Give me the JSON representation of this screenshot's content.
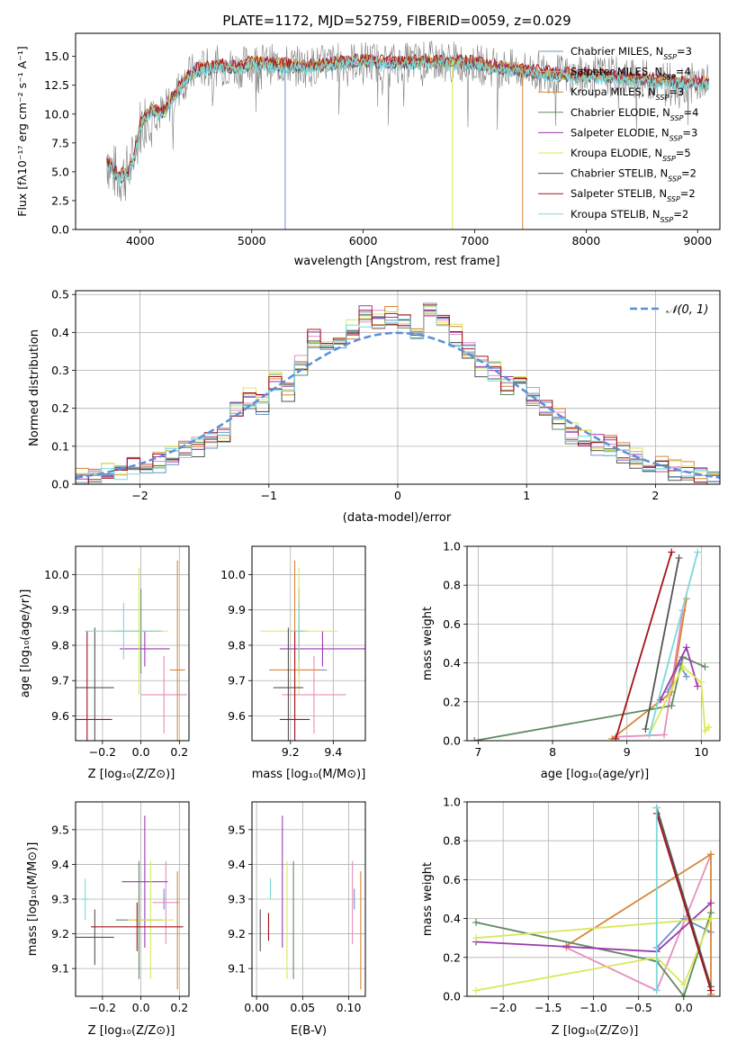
{
  "colors": {
    "series": [
      "#6f93c9",
      "#e58fbd",
      "#d4883a",
      "#5f8a5f",
      "#9b3ab0",
      "#d9e85a",
      "#555555",
      "#a3131a",
      "#7bd8dc"
    ],
    "gaussian": "#5b8fd9",
    "grid": "#b0b0b0"
  },
  "chart_data": [
    {
      "id": "spectrum",
      "type": "line",
      "title": "PLATE=1172, MJD=52759, FIBERID=0059, z=0.029",
      "xlabel": "wavelength [Angstrom, rest frame]",
      "ylabel": "Flux [fλ10⁻¹⁷ erg cm⁻² s⁻¹ A⁻¹]",
      "xlim": [
        3420,
        9200
      ],
      "ylim": [
        0,
        17
      ],
      "xticks": [
        4000,
        5000,
        6000,
        7000,
        8000,
        9000
      ],
      "yticks": [
        0.0,
        2.5,
        5.0,
        7.5,
        10.0,
        12.5,
        15.0
      ],
      "grid": false,
      "legend_position": "upper right",
      "legend": [
        "Chabrier MILES, N_SSP=3",
        "Salpeter MILES, N_SSP=4",
        "Kroupa MILES, N_SSP=3",
        "Chabrier ELODIE, N_SSP=4",
        "Salpeter ELODIE, N_SSP=3",
        "Kroupa ELODIE, N_SSP=5",
        "Chabrier STELIB, N_SSP=2",
        "Salpeter STELIB, N_SSP=2",
        "Kroupa STELIB, N_SSP=2"
      ],
      "continuum": {
        "x": [
          3700,
          3800,
          3900,
          3950,
          4000,
          4100,
          4200,
          4300,
          4400,
          4500,
          4700,
          4900,
          5000,
          5200,
          5500,
          5800,
          6000,
          6300,
          6600,
          6900,
          7100,
          7300,
          7600,
          7900,
          8200,
          8500,
          8800,
          9100
        ],
        "y": [
          6.0,
          4.5,
          5.0,
          6.5,
          9.0,
          10.5,
          10.0,
          11.5,
          13.0,
          13.8,
          14.2,
          14.0,
          14.5,
          14.3,
          14.1,
          14.5,
          14.6,
          14.4,
          14.6,
          14.5,
          14.2,
          13.9,
          13.6,
          13.3,
          13.3,
          13.0,
          12.8,
          12.6
        ]
      },
      "dips": [
        {
          "x": 5300,
          "y": 0.0
        },
        {
          "x": 6800,
          "y": 0.0
        },
        {
          "x": 7430,
          "y": 0.0
        }
      ]
    },
    {
      "id": "residuals",
      "type": "line",
      "xlabel": "(data-model)/error",
      "ylabel": "Normed distribution",
      "xlim": [
        -2.5,
        2.5
      ],
      "ylim": [
        0,
        0.51
      ],
      "xticks": [
        -2,
        -1,
        0,
        1,
        2
      ],
      "yticks": [
        0.0,
        0.1,
        0.2,
        0.3,
        0.4,
        0.5
      ],
      "grid": true,
      "legend": [
        "𝒩(0, 1)"
      ],
      "legend_position": "upper right",
      "bin_width": 0.1,
      "histogram_envelope": {
        "x": [
          -2.45,
          -2.35,
          -2.25,
          -2.15,
          -2.05,
          -1.95,
          -1.85,
          -1.75,
          -1.65,
          -1.55,
          -1.45,
          -1.35,
          -1.25,
          -1.15,
          -1.05,
          -0.95,
          -0.85,
          -0.75,
          -0.65,
          -0.55,
          -0.45,
          -0.35,
          -0.25,
          -0.15,
          -0.05,
          0.05,
          0.15,
          0.25,
          0.35,
          0.45,
          0.55,
          0.65,
          0.75,
          0.85,
          0.95,
          1.05,
          1.15,
          1.25,
          1.35,
          1.45,
          1.55,
          1.65,
          1.75,
          1.85,
          1.95,
          2.05,
          2.15,
          2.25,
          2.35,
          2.45
        ],
        "y": [
          0.015,
          0.02,
          0.03,
          0.035,
          0.045,
          0.055,
          0.06,
          0.075,
          0.09,
          0.1,
          0.12,
          0.13,
          0.2,
          0.22,
          0.21,
          0.27,
          0.24,
          0.31,
          0.38,
          0.37,
          0.38,
          0.4,
          0.44,
          0.43,
          0.44,
          0.42,
          0.4,
          0.46,
          0.43,
          0.39,
          0.35,
          0.31,
          0.3,
          0.26,
          0.26,
          0.23,
          0.2,
          0.17,
          0.13,
          0.12,
          0.1,
          0.1,
          0.08,
          0.065,
          0.055,
          0.045,
          0.035,
          0.03,
          0.025,
          0.02
        ]
      },
      "gaussian": {
        "mean": 0,
        "sigma": 1
      }
    },
    {
      "id": "age-vs-Z",
      "type": "scatter",
      "xlabel": "Z [log₁₀(Z/Z⊙)]",
      "ylabel": "age  [log₁₀(age/yr)]",
      "xlim": [
        -0.34,
        0.25
      ],
      "ylim": [
        9.53,
        10.08
      ],
      "xticks": [
        -0.2,
        0.0,
        0.2
      ],
      "yticks": [
        9.6,
        9.7,
        9.8,
        9.9,
        10.0
      ],
      "grid": true,
      "errorbars": [
        {
          "x": -0.02,
          "xerr": 0.12,
          "y": 9.84,
          "yerr": 0.0,
          "s": 0
        },
        {
          "x": 0.12,
          "xerr": 0.12,
          "y": 9.66,
          "yerr": 0.11,
          "s": 1
        },
        {
          "x": 0.19,
          "xerr": 0.04,
          "y": 9.73,
          "yerr": 0.31,
          "s": 2
        },
        {
          "x": 0.0,
          "xerr": 0.0,
          "y": 9.84,
          "yerr": 0.12,
          "s": 3
        },
        {
          "x": 0.02,
          "xerr": 0.13,
          "y": 9.79,
          "yerr": 0.05,
          "s": 4
        },
        {
          "x": -0.01,
          "xerr": 0.15,
          "y": 9.84,
          "yerr": 0.18,
          "s": 5
        },
        {
          "x": -0.24,
          "xerr": 0.1,
          "y": 9.68,
          "yerr": 0.17,
          "s": 6
        },
        {
          "x": -0.28,
          "xerr": 0.13,
          "y": 9.59,
          "yerr": 0.25,
          "s": 7
        },
        {
          "x": -0.09,
          "xerr": 0.2,
          "y": 9.84,
          "yerr": 0.08,
          "s": 8
        }
      ]
    },
    {
      "id": "age-vs-mass",
      "type": "scatter",
      "xlabel": "mass [log₁₀(M/M⊙)]",
      "ylabel": "",
      "xlim": [
        9.02,
        9.55
      ],
      "ylim": [
        9.53,
        10.08
      ],
      "xticks": [
        9.2,
        9.4
      ],
      "yticks": [
        9.6,
        9.7,
        9.8,
        9.9,
        10.0
      ],
      "grid": true,
      "errorbars": [
        {
          "x": 9.3,
          "xerr": 0.07,
          "y": 9.73,
          "yerr": 0.0,
          "s": 0
        },
        {
          "x": 9.31,
          "xerr": 0.15,
          "y": 9.66,
          "yerr": 0.11,
          "s": 1
        },
        {
          "x": 9.22,
          "xerr": 0.12,
          "y": 9.73,
          "yerr": 0.31,
          "s": 2
        },
        {
          "x": 9.24,
          "xerr": 0.04,
          "y": 9.84,
          "yerr": 0.12,
          "s": 3
        },
        {
          "x": 9.35,
          "xerr": 0.2,
          "y": 9.79,
          "yerr": 0.05,
          "s": 4
        },
        {
          "x": 9.24,
          "xerr": 0.18,
          "y": 9.84,
          "yerr": 0.18,
          "s": 5
        },
        {
          "x": 9.19,
          "xerr": 0.07,
          "y": 9.68,
          "yerr": 0.17,
          "s": 6
        },
        {
          "x": 9.22,
          "xerr": 0.07,
          "y": 9.59,
          "yerr": 0.25,
          "s": 7
        },
        {
          "x": 9.24,
          "xerr": 0.02,
          "y": 9.84,
          "yerr": 0.08,
          "s": 8
        }
      ]
    },
    {
      "id": "weight-vs-age",
      "type": "line",
      "xlabel": "age  [log₁₀(age/yr)]",
      "ylabel": "mass weight",
      "xlim": [
        6.85,
        10.25
      ],
      "ylim": [
        0.0,
        1.0
      ],
      "xticks": [
        7,
        8,
        9,
        10
      ],
      "yticks": [
        0.0,
        0.2,
        0.4,
        0.6,
        0.8,
        1.0
      ],
      "grid": true,
      "series": [
        {
          "s": 0,
          "x": [
            9.55,
            9.7,
            9.8
          ],
          "y": [
            0.25,
            0.4,
            0.33
          ]
        },
        {
          "s": 1,
          "x": [
            8.85,
            9.5,
            9.75
          ],
          "y": [
            0.02,
            0.03,
            0.67
          ]
        },
        {
          "s": 2,
          "x": [
            8.8,
            9.6,
            9.8
          ],
          "y": [
            0.01,
            0.25,
            0.73
          ]
        },
        {
          "s": 3,
          "x": [
            6.95,
            9.6,
            9.75,
            10.05
          ],
          "y": [
            0.0,
            0.18,
            0.43,
            0.38
          ]
        },
        {
          "s": 4,
          "x": [
            9.45,
            9.8,
            9.95
          ],
          "y": [
            0.21,
            0.48,
            0.28
          ]
        },
        {
          "s": 5,
          "x": [
            9.3,
            9.75,
            10.0,
            10.05,
            10.1
          ],
          "y": [
            0.03,
            0.38,
            0.3,
            0.05,
            0.07
          ]
        },
        {
          "s": 6,
          "x": [
            9.25,
            9.7
          ],
          "y": [
            0.06,
            0.94
          ]
        },
        {
          "s": 7,
          "x": [
            8.85,
            9.6
          ],
          "y": [
            0.01,
            0.97
          ]
        },
        {
          "s": 8,
          "x": [
            9.3,
            9.95
          ],
          "y": [
            0.03,
            0.97
          ]
        }
      ]
    },
    {
      "id": "mass-vs-Z",
      "type": "scatter",
      "xlabel": "Z [log₁₀(Z/Z⊙)]",
      "ylabel": "mass [log₁₀(M/M⊙)]",
      "xlim": [
        -0.34,
        0.25
      ],
      "ylim": [
        9.02,
        9.58
      ],
      "xticks": [
        -0.2,
        0.0,
        0.2
      ],
      "yticks": [
        9.1,
        9.2,
        9.3,
        9.4,
        9.5
      ],
      "grid": true,
      "errorbars": [
        {
          "x": 0.12,
          "xerr": 0.0,
          "y": 9.3,
          "yerr": 0.03,
          "s": 0
        },
        {
          "x": 0.13,
          "xerr": 0.07,
          "y": 9.29,
          "yerr": 0.12,
          "s": 1
        },
        {
          "x": 0.19,
          "xerr": 0.0,
          "y": 9.21,
          "yerr": 0.17,
          "s": 2
        },
        {
          "x": -0.01,
          "xerr": 0.12,
          "y": 9.24,
          "yerr": 0.17,
          "s": 3
        },
        {
          "x": 0.02,
          "xerr": 0.12,
          "y": 9.35,
          "yerr": 0.19,
          "s": 4
        },
        {
          "x": 0.05,
          "xerr": 0.12,
          "y": 9.24,
          "yerr": 0.17,
          "s": 5
        },
        {
          "x": -0.24,
          "xerr": 0.1,
          "y": 9.19,
          "yerr": 0.08,
          "s": 6
        },
        {
          "x": -0.02,
          "xerr": 0.24,
          "y": 9.22,
          "yerr": 0.07,
          "s": 7
        },
        {
          "x": -0.29,
          "xerr": 0.02,
          "y": 9.3,
          "yerr": 0.06,
          "s": 8
        }
      ]
    },
    {
      "id": "mass-vs-ebv",
      "type": "scatter",
      "xlabel": "E(B-V)",
      "ylabel": "",
      "xlim": [
        -0.005,
        0.118
      ],
      "ylim": [
        9.02,
        9.58
      ],
      "xticks": [
        0.0,
        0.05,
        0.1
      ],
      "yticks": [
        9.1,
        9.2,
        9.3,
        9.4,
        9.5
      ],
      "grid": true,
      "errorbars": [
        {
          "x": 0.106,
          "xerr": 0.0,
          "y": 9.3,
          "yerr": 0.03,
          "s": 0
        },
        {
          "x": 0.104,
          "xerr": 0.0,
          "y": 9.29,
          "yerr": 0.12,
          "s": 1
        },
        {
          "x": 0.113,
          "xerr": 0.0,
          "y": 9.21,
          "yerr": 0.17,
          "s": 2
        },
        {
          "x": 0.04,
          "xerr": 0.0,
          "y": 9.24,
          "yerr": 0.17,
          "s": 3
        },
        {
          "x": 0.028,
          "xerr": 0.0,
          "y": 9.35,
          "yerr": 0.19,
          "s": 4
        },
        {
          "x": 0.033,
          "xerr": 0.0,
          "y": 9.24,
          "yerr": 0.17,
          "s": 5
        },
        {
          "x": 0.004,
          "xerr": 0.0,
          "y": 9.21,
          "yerr": 0.06,
          "s": 6
        },
        {
          "x": 0.013,
          "xerr": 0.0,
          "y": 9.22,
          "yerr": 0.04,
          "s": 7
        },
        {
          "x": 0.015,
          "xerr": 0.0,
          "y": 9.33,
          "yerr": 0.03,
          "s": 8
        }
      ]
    },
    {
      "id": "weight-vs-Z",
      "type": "line",
      "xlabel": "Z [log₁₀(Z/Z⊙)]",
      "ylabel": "mass weight",
      "xlim": [
        -2.4,
        0.4
      ],
      "ylim": [
        0.0,
        1.0
      ],
      "xticks": [
        -2.0,
        -1.5,
        -1.0,
        -0.5,
        0.0
      ],
      "yticks": [
        0.0,
        0.2,
        0.4,
        0.6,
        0.8,
        1.0
      ],
      "grid": true,
      "series": [
        {
          "s": 0,
          "x": [
            -0.3,
            0.0,
            0.3
          ],
          "y": [
            0.25,
            0.4,
            0.33
          ]
        },
        {
          "s": 1,
          "x": [
            -1.3,
            -0.3,
            0.3
          ],
          "y": [
            0.25,
            0.03,
            0.73
          ]
        },
        {
          "s": 2,
          "x": [
            -1.3,
            0.3,
            0.3
          ],
          "y": [
            0.26,
            0.73,
            0.01
          ]
        },
        {
          "s": 3,
          "x": [
            -2.3,
            -0.3,
            0.0,
            0.3
          ],
          "y": [
            0.38,
            0.18,
            0.0,
            0.43
          ]
        },
        {
          "s": 4,
          "x": [
            -2.3,
            -0.3,
            0.3
          ],
          "y": [
            0.28,
            0.23,
            0.48
          ]
        },
        {
          "s": 5,
          "x": [
            -2.3,
            -0.3,
            0.0,
            0.3,
            -2.3
          ],
          "y": [
            0.03,
            0.2,
            0.06,
            0.4,
            0.3
          ]
        },
        {
          "s": 6,
          "x": [
            -0.3,
            0.3
          ],
          "y": [
            0.97,
            0.05
          ]
        },
        {
          "s": 7,
          "x": [
            -0.3,
            0.3
          ],
          "y": [
            0.94,
            0.03
          ]
        },
        {
          "s": 8,
          "x": [
            -0.3,
            -0.3
          ],
          "y": [
            0.97,
            0.03
          ]
        }
      ]
    }
  ]
}
